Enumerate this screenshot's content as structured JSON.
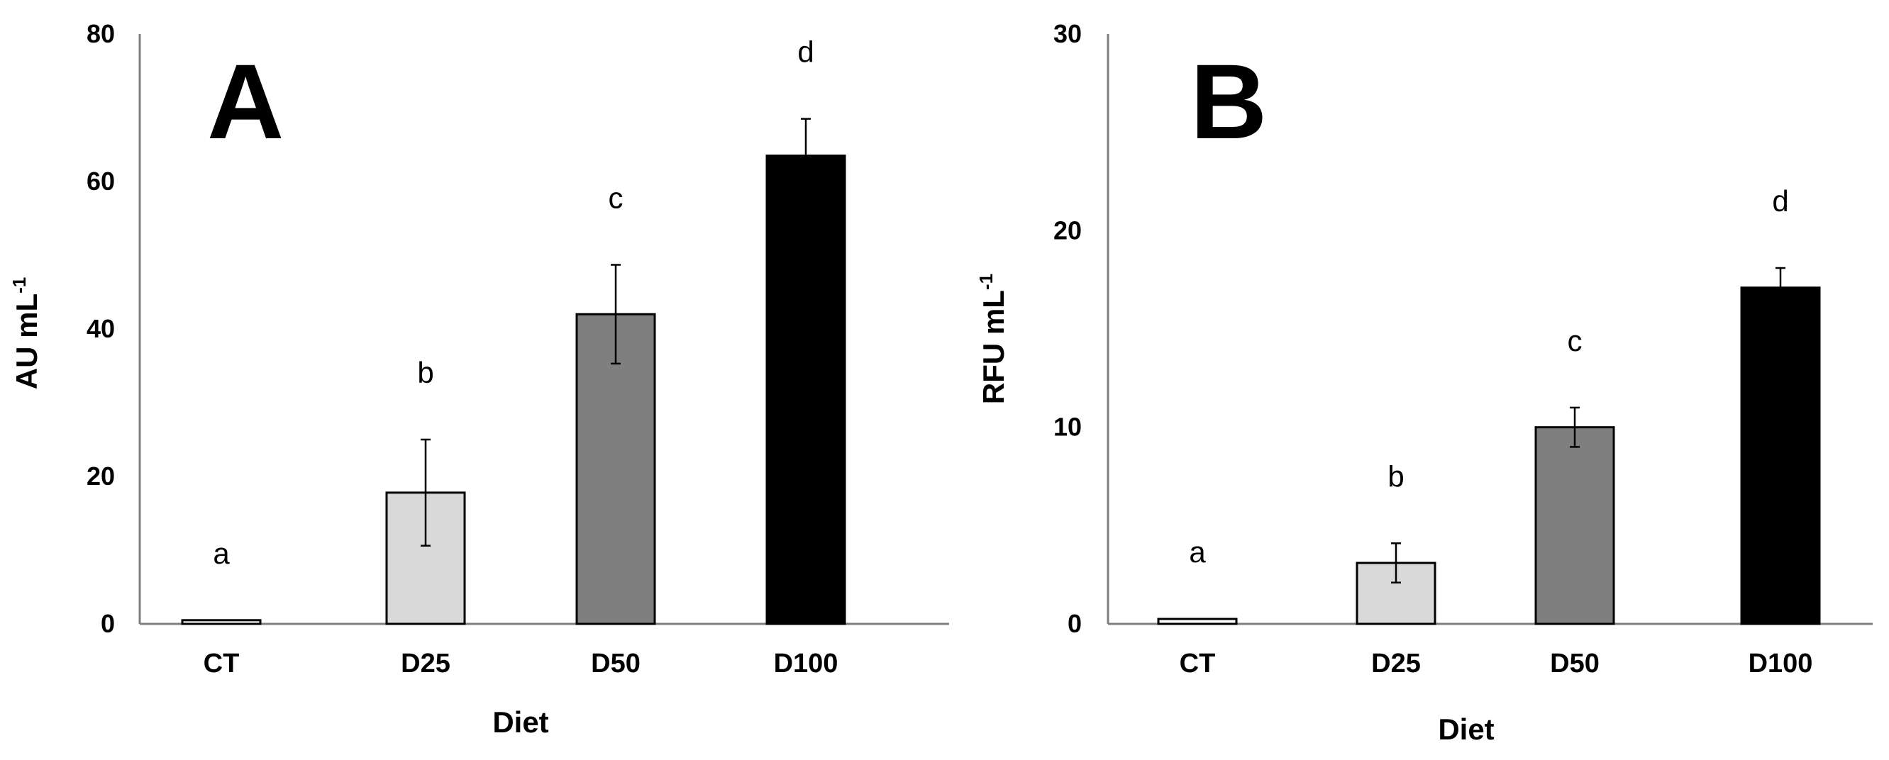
{
  "colors": {
    "CT": "#ffffff",
    "D25": "#d9d9d9",
    "D50": "#7f7f7f",
    "D100": "#000000",
    "axis": "#7f7f7f",
    "bar_edge": "#000000"
  },
  "chart_data": [
    {
      "type": "bar",
      "panel_label": "A",
      "categories": [
        "CT",
        "D25",
        "D50",
        "D100"
      ],
      "values": [
        0.5,
        17.8,
        42,
        63.5
      ],
      "errors": [
        0,
        7.2,
        6.7,
        5
      ],
      "significance": [
        "a",
        "b",
        "c",
        "d"
      ],
      "xlabel": "Diet",
      "ylabel": "AU mL",
      "ylabel_sup": "-1",
      "ylim": [
        0,
        80
      ],
      "yticks": [
        0,
        20,
        40,
        60,
        80
      ],
      "grid": false
    },
    {
      "type": "bar",
      "panel_label": "B",
      "categories": [
        "CT",
        "D25",
        "D50",
        "D100"
      ],
      "values": [
        0.25,
        3.1,
        10,
        17.1
      ],
      "errors": [
        0,
        1,
        1,
        1
      ],
      "significance": [
        "a",
        "b",
        "c",
        "d"
      ],
      "xlabel": "Diet",
      "ylabel": "RFU mL",
      "ylabel_sup": "-1",
      "ylim": [
        0,
        30
      ],
      "yticks": [
        0,
        10,
        20,
        30
      ],
      "grid": false
    }
  ]
}
